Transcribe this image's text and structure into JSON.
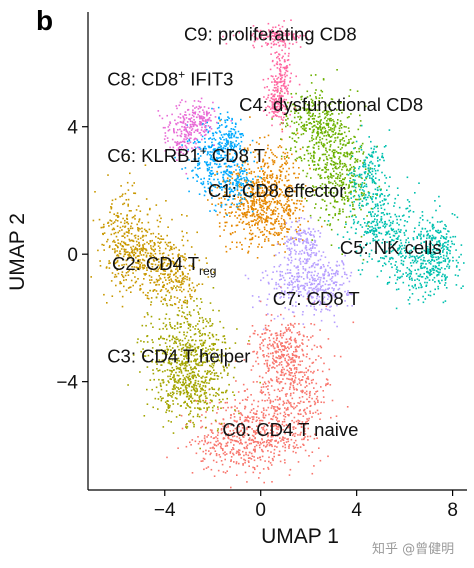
{
  "panel_letter": "b",
  "watermark": "知乎 @曾健明",
  "chart_data": {
    "type": "scatter",
    "title": "",
    "xlabel": "UMAP 1",
    "ylabel": "UMAP 2",
    "xlim": [
      -7.2,
      8.6
    ],
    "ylim": [
      -7.4,
      7.6
    ],
    "xticks": [
      -4,
      0,
      4,
      8
    ],
    "xtick_labels": [
      "−4",
      "0",
      "4",
      "8"
    ],
    "yticks": [
      -4,
      0,
      4
    ],
    "ytick_labels": [
      "−4",
      "0",
      "4"
    ],
    "grid": false,
    "legend": "none (clusters labelled directly on plot)",
    "clusters": [
      {
        "id": "C0",
        "label": "C0: CD4 T naive",
        "color": "#F8766D",
        "centers": [
          [
            0.2,
            -5.4
          ],
          [
            -1.3,
            -5.9
          ],
          [
            1.3,
            -4.0
          ],
          [
            0.8,
            -2.9
          ]
        ],
        "spread": [
          [
            1.0,
            0.7
          ],
          [
            0.9,
            0.5
          ],
          [
            0.8,
            0.9
          ],
          [
            0.6,
            0.5
          ]
        ]
      },
      {
        "id": "C1",
        "label": "C1: CD8 effector",
        "color": "#E58700",
        "centers": [
          [
            0.1,
            2.3
          ],
          [
            -0.5,
            1.4
          ],
          [
            0.6,
            1.3
          ]
        ],
        "spread": [
          [
            0.8,
            0.7
          ],
          [
            0.7,
            0.6
          ],
          [
            0.6,
            0.5
          ]
        ]
      },
      {
        "id": "C2",
        "label": "C2: CD4 T_reg",
        "color": "#C99800",
        "centers": [
          [
            -5.7,
            0.5
          ],
          [
            -4.7,
            0.0
          ],
          [
            -3.6,
            -0.7
          ]
        ],
        "spread": [
          [
            0.55,
            0.8
          ],
          [
            0.7,
            0.6
          ],
          [
            0.6,
            0.5
          ]
        ]
      },
      {
        "id": "C3",
        "label": "C3: CD4 T helper",
        "color": "#A3A500",
        "centers": [
          [
            -3.4,
            -2.9
          ],
          [
            -2.4,
            -3.6
          ],
          [
            -3.2,
            -4.2
          ]
        ],
        "spread": [
          [
            0.8,
            0.8
          ],
          [
            0.7,
            0.8
          ],
          [
            0.6,
            0.5
          ]
        ]
      },
      {
        "id": "C4",
        "label": "C4: dysfunctional CD8",
        "color": "#6BB100",
        "centers": [
          [
            2.8,
            3.3
          ],
          [
            3.4,
            2.2
          ],
          [
            2.1,
            4.2
          ]
        ],
        "spread": [
          [
            0.7,
            0.8
          ],
          [
            0.6,
            0.7
          ],
          [
            0.6,
            0.5
          ]
        ]
      },
      {
        "id": "C5",
        "label": "C5: NK cells",
        "color": "#00C0AF",
        "centers": [
          [
            6.6,
            -0.4
          ],
          [
            5.2,
            0.8
          ],
          [
            7.3,
            0.2
          ],
          [
            4.5,
            2.3
          ]
        ],
        "spread": [
          [
            0.8,
            0.5
          ],
          [
            0.7,
            0.6
          ],
          [
            0.5,
            0.6
          ],
          [
            0.4,
            0.7
          ]
        ]
      },
      {
        "id": "C6",
        "label": "C6: KLRB1+ CD8 T",
        "color": "#00A9FF",
        "centers": [
          [
            -2.1,
            2.9
          ],
          [
            -1.4,
            3.6
          ],
          [
            -1.1,
            2.3
          ]
        ],
        "spread": [
          [
            0.5,
            0.6
          ],
          [
            0.4,
            0.4
          ],
          [
            0.4,
            0.4
          ]
        ]
      },
      {
        "id": "C7",
        "label": "C7: CD8 T",
        "color": "#B79FFF",
        "centers": [
          [
            1.5,
            -0.9
          ],
          [
            2.7,
            -1.0
          ],
          [
            1.7,
            0.3
          ]
        ],
        "spread": [
          [
            0.7,
            0.5
          ],
          [
            0.5,
            0.4
          ],
          [
            0.4,
            0.4
          ]
        ]
      },
      {
        "id": "C8",
        "label": "C8: CD8+ IFIT3",
        "color": "#E86BD6",
        "centers": [
          [
            -3.3,
            3.8
          ],
          [
            -2.6,
            4.2
          ]
        ],
        "spread": [
          [
            0.4,
            0.4
          ],
          [
            0.35,
            0.3
          ]
        ]
      },
      {
        "id": "C9",
        "label": "C9: proliferating CD8",
        "color": "#FF68A1",
        "centers": [
          [
            0.5,
            6.9
          ],
          [
            0.8,
            5.6
          ],
          [
            0.6,
            4.7
          ]
        ],
        "spread": [
          [
            0.6,
            0.15
          ],
          [
            0.25,
            0.7
          ],
          [
            0.2,
            0.3
          ]
        ]
      }
    ],
    "labels": [
      {
        "text": "C9: proliferating CD8",
        "x": -3.2,
        "y": 6.7
      },
      {
        "text": "C8: CD8",
        "sup": "+",
        "rest": " IFIT3",
        "x": -6.4,
        "y": 5.3
      },
      {
        "text": "C4: dysfunctional CD8",
        "x": -0.9,
        "y": 4.5
      },
      {
        "text": "C6: KLRB1",
        "sup": "+",
        "rest": " CD8 T",
        "x": -6.4,
        "y": 2.9
      },
      {
        "text": "C1: CD8 effector",
        "x": -2.2,
        "y": 1.8
      },
      {
        "text": "C5: NK cells",
        "x": 3.3,
        "y": 0.0
      },
      {
        "text": "C2: CD4 T",
        "sub": "reg",
        "x": -6.2,
        "y": -0.5
      },
      {
        "text": "C7: CD8 T",
        "x": 0.5,
        "y": -1.6
      },
      {
        "text": "C3: CD4 T helper",
        "x": -6.4,
        "y": -3.4
      },
      {
        "text": "C0: CD4 T naive",
        "x": -1.6,
        "y": -5.7
      }
    ]
  }
}
